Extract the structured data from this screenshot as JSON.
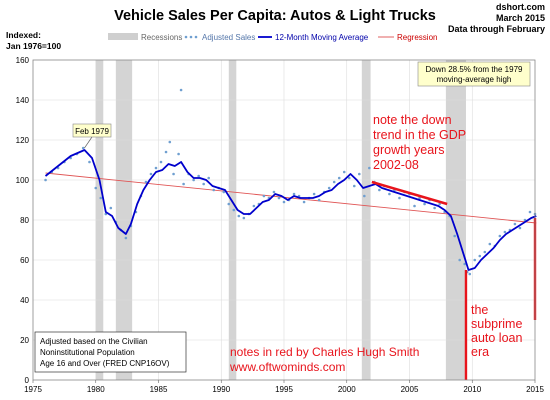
{
  "chart_data": {
    "type": "line",
    "title": "Vehicle Sales Per Capita: Autos & Light Trucks",
    "source_lines": [
      "dshort.com",
      "March 2015",
      "Data through February"
    ],
    "ylabel_lines": [
      "Indexed:",
      "Jan 1976=100"
    ],
    "xlim": [
      1975,
      2015
    ],
    "ylim": [
      0,
      160
    ],
    "x_ticks": [
      1975,
      1980,
      1985,
      1990,
      1995,
      2000,
      2005,
      2010,
      2015
    ],
    "y_ticks": [
      0,
      20,
      40,
      60,
      80,
      100,
      120,
      140,
      160
    ],
    "grid": true,
    "legend": {
      "placement": "top",
      "entries": [
        "Recessions",
        "Adjusted Sales",
        "12-Month Moving Average",
        "Regression"
      ]
    },
    "recessions": [
      [
        1980.0,
        1980.6
      ],
      [
        1981.6,
        1982.9
      ],
      [
        1990.6,
        1991.2
      ],
      [
        2001.2,
        2001.9
      ],
      [
        2007.9,
        2009.5
      ]
    ],
    "moving_average": {
      "name": "12-Month Moving Average",
      "x": [
        1976.0,
        1977.0,
        1978.0,
        1979.1,
        1979.7,
        1980.3,
        1980.8,
        1981.3,
        1981.8,
        1982.4,
        1982.8,
        1983.3,
        1983.8,
        1984.3,
        1984.8,
        1985.3,
        1985.8,
        1986.3,
        1986.8,
        1987.3,
        1987.8,
        1988.3,
        1988.8,
        1989.3,
        1989.8,
        1990.3,
        1990.8,
        1991.3,
        1991.8,
        1992.3,
        1992.8,
        1993.3,
        1993.8,
        1994.3,
        1994.8,
        1995.3,
        1995.8,
        1996.3,
        1996.8,
        1997.3,
        1997.8,
        1998.3,
        1998.8,
        1999.3,
        1999.8,
        2000.3,
        2000.8,
        2001.3,
        2001.8,
        2002.3,
        2002.8,
        2003.3,
        2003.8,
        2004.3,
        2004.8,
        2005.3,
        2005.8,
        2006.3,
        2006.8,
        2007.3,
        2007.8,
        2008.3,
        2008.8,
        2009.3,
        2009.7,
        2010.2,
        2010.7,
        2011.2,
        2011.7,
        2012.2,
        2012.7,
        2013.2,
        2013.7,
        2014.2,
        2014.7,
        2015.1
      ],
      "y": [
        102,
        107,
        112,
        115,
        111,
        100,
        84,
        82,
        76,
        73,
        78,
        88,
        95,
        100,
        104,
        105,
        108,
        107,
        109,
        104,
        101,
        101,
        100,
        97,
        96,
        95,
        90,
        85,
        83,
        83,
        86,
        89,
        90,
        93,
        92,
        90,
        92,
        91,
        91,
        91,
        92,
        94,
        95,
        98,
        100,
        103,
        100,
        96,
        97,
        98,
        96,
        95,
        94,
        93,
        92,
        91,
        90,
        89,
        88,
        87,
        85,
        82,
        73,
        63,
        55,
        56,
        60,
        63,
        66,
        70,
        73,
        75,
        77,
        79,
        81,
        82
      ]
    },
    "adjusted_sales": {
      "name": "Adjusted Sales",
      "x": [
        1976.0,
        1976.5,
        1977.0,
        1977.5,
        1978.0,
        1978.5,
        1979.0,
        1979.5,
        1980.0,
        1980.4,
        1980.8,
        1981.2,
        1981.6,
        1982.0,
        1982.4,
        1982.8,
        1983.2,
        1983.6,
        1984.0,
        1984.4,
        1984.8,
        1985.2,
        1985.6,
        1985.9,
        1986.2,
        1986.6,
        1986.8,
        1987.0,
        1987.4,
        1987.8,
        1988.2,
        1988.6,
        1989.0,
        1989.4,
        1989.8,
        1990.2,
        1990.6,
        1991.0,
        1991.4,
        1991.8,
        1992.2,
        1992.6,
        1993.0,
        1993.4,
        1993.8,
        1994.2,
        1994.6,
        1995.0,
        1995.4,
        1995.8,
        1996.2,
        1996.6,
        1997.0,
        1997.4,
        1997.8,
        1998.2,
        1998.6,
        1999.0,
        1999.4,
        1999.8,
        2000.2,
        2000.6,
        2001.0,
        2001.4,
        2001.8,
        2002.2,
        2002.6,
        2003.0,
        2003.4,
        2003.8,
        2004.2,
        2004.6,
        2005.0,
        2005.4,
        2005.8,
        2006.2,
        2006.6,
        2007.0,
        2007.4,
        2007.8,
        2008.2,
        2008.6,
        2009.0,
        2009.4,
        2009.6,
        2009.8,
        2010.2,
        2010.6,
        2011.0,
        2011.4,
        2011.8,
        2012.2,
        2012.6,
        2013.0,
        2013.4,
        2013.8,
        2014.2,
        2014.6,
        2015.0
      ],
      "y": [
        100,
        104,
        106,
        109,
        111,
        113,
        116,
        109,
        96,
        91,
        83,
        86,
        79,
        75,
        71,
        77,
        84,
        92,
        99,
        103,
        106,
        109,
        114,
        119,
        103,
        113,
        145,
        98,
        103,
        100,
        102,
        98,
        101,
        95,
        96,
        94,
        88,
        85,
        82,
        81,
        83,
        87,
        88,
        92,
        91,
        94,
        91,
        89,
        90,
        93,
        92,
        89,
        91,
        93,
        90,
        94,
        96,
        99,
        101,
        104,
        101,
        97,
        103,
        92,
        106,
        99,
        95,
        97,
        93,
        95,
        91,
        94,
        93,
        87,
        91,
        88,
        90,
        86,
        88,
        84,
        82,
        72,
        60,
        58,
        54,
        53,
        60,
        62,
        64,
        68,
        67,
        72,
        74,
        75,
        78,
        76,
        80,
        84,
        83
      ]
    },
    "regression": {
      "name": "Regression",
      "x": [
        1976.0,
        2015.1
      ],
      "y": [
        103.5,
        78.5
      ]
    },
    "annotations": {
      "feb1979": {
        "text": "Feb 1979",
        "x": 1979.1,
        "y": 115
      },
      "down_box": {
        "lines": [
          "Down 28.5% from the 1979",
          "moving-average high"
        ]
      },
      "red_note_top": {
        "lines": [
          "note the down",
          "trend in the GDP",
          "growth  years",
          "2002-08"
        ]
      },
      "red_note_right": {
        "lines": [
          "the",
          "subprime",
          "auto loan",
          "era"
        ]
      },
      "credit": {
        "lines": [
          "notes in red by Charles Hugh Smith",
          "www.oftwominds.com"
        ]
      },
      "adjusted_box": {
        "lines": [
          "Adjusted based on the Civilian",
          "Noninstitutional Population",
          "Age 16 and Over (FRED CNP16OV)"
        ]
      }
    },
    "red_marks": {
      "trend_segment": {
        "x": [
          2002.0,
          2008.0
        ],
        "y": [
          99,
          88
        ]
      },
      "vline_2009": {
        "x": 2009.5,
        "y": [
          55,
          0
        ]
      },
      "vline_2015": {
        "x": 2015.0,
        "y": [
          81,
          30
        ]
      }
    }
  }
}
